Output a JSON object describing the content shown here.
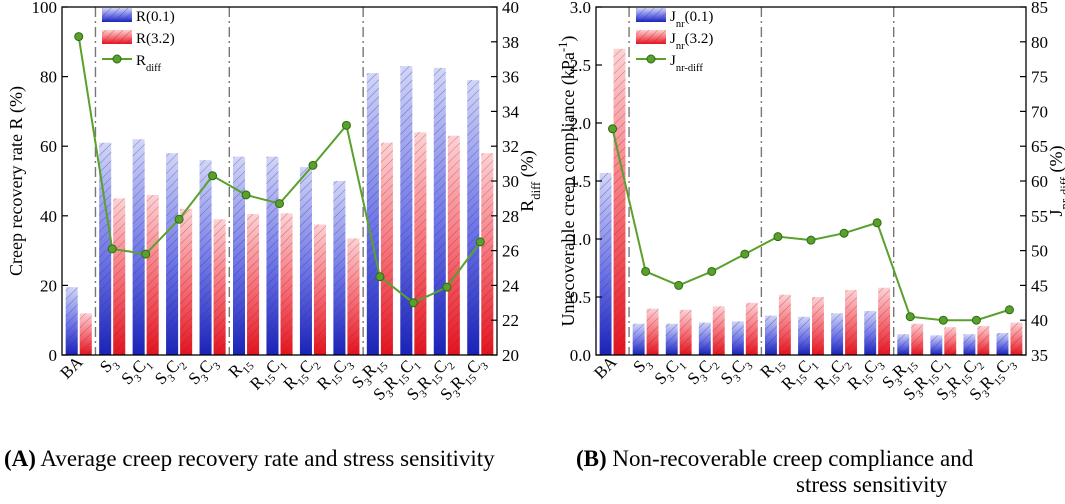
{
  "chart_data": [
    {
      "type": "bar",
      "panel": "A",
      "categories": [
        {
          "base": "BA",
          "subs": []
        },
        {
          "base": "S",
          "subs": [
            "3"
          ]
        },
        {
          "base": "S",
          "subs": [
            "3",
            "C",
            "1"
          ]
        },
        {
          "base": "S",
          "subs": [
            "3",
            "C",
            "2"
          ]
        },
        {
          "base": "S",
          "subs": [
            "3",
            "C",
            "3"
          ]
        },
        {
          "base": "R",
          "subs": [
            "15"
          ]
        },
        {
          "base": "R",
          "subs": [
            "15",
            "C",
            "1"
          ]
        },
        {
          "base": "R",
          "subs": [
            "15",
            "C",
            "2"
          ]
        },
        {
          "base": "R",
          "subs": [
            "15",
            "C",
            "3"
          ]
        },
        {
          "base": "S",
          "subs": [
            "3",
            "R",
            "15"
          ]
        },
        {
          "base": "S",
          "subs": [
            "3",
            "R",
            "15",
            "C",
            "1"
          ]
        },
        {
          "base": "S",
          "subs": [
            "3",
            "R",
            "15",
            "C",
            "2"
          ]
        },
        {
          "base": "S",
          "subs": [
            "3",
            "R",
            "15",
            "C",
            "3"
          ]
        }
      ],
      "series": [
        {
          "name": "R(0.1)",
          "legend_base": "R",
          "legend_sub": "",
          "legend_rest": "(0.1)",
          "axis": "left",
          "color": "#3a3fd0",
          "values": [
            19.5,
            61,
            62,
            58,
            56,
            57,
            57,
            54,
            50,
            81,
            83,
            82.5,
            79
          ]
        },
        {
          "name": "R(3.2)",
          "legend_base": "R",
          "legend_sub": "",
          "legend_rest": "(3.2)",
          "axis": "left",
          "color": "#f0404a",
          "values": [
            12,
            45,
            46,
            42,
            39,
            40.5,
            40.7,
            37.5,
            33.5,
            61,
            64,
            63,
            58
          ]
        },
        {
          "name": "Rdiff",
          "legend_base": "R",
          "legend_sub": "diff",
          "legend_rest": "",
          "axis": "right",
          "color": "#5aa02c",
          "type": "line",
          "values": [
            38.3,
            26.1,
            25.8,
            27.8,
            30.3,
            29.2,
            28.7,
            30.9,
            33.2,
            24.5,
            23.0,
            23.9,
            26.5
          ]
        }
      ],
      "ylabel": "Creep recovery rate R (%)",
      "y2label_base": "R",
      "y2label_sub": "diff",
      "y2label_rest": " (%)",
      "ylim": [
        0,
        100
      ],
      "yticks": [
        "0",
        "20",
        "40",
        "60",
        "80",
        "100"
      ],
      "y2lim": [
        20,
        40
      ],
      "y2ticks": [
        "20",
        "22",
        "24",
        "26",
        "28",
        "30",
        "32",
        "34",
        "36",
        "38",
        "40"
      ],
      "group_separators_after": [
        0,
        4,
        8
      ],
      "legend_position": "top-left"
    },
    {
      "type": "bar",
      "panel": "B",
      "categories": [
        {
          "base": "BA",
          "subs": []
        },
        {
          "base": "S",
          "subs": [
            "3"
          ]
        },
        {
          "base": "S",
          "subs": [
            "3",
            "C",
            "1"
          ]
        },
        {
          "base": "S",
          "subs": [
            "3",
            "C",
            "2"
          ]
        },
        {
          "base": "S",
          "subs": [
            "3",
            "C",
            "3"
          ]
        },
        {
          "base": "R",
          "subs": [
            "15"
          ]
        },
        {
          "base": "R",
          "subs": [
            "15",
            "C",
            "1"
          ]
        },
        {
          "base": "R",
          "subs": [
            "15",
            "C",
            "2"
          ]
        },
        {
          "base": "R",
          "subs": [
            "15",
            "C",
            "3"
          ]
        },
        {
          "base": "S",
          "subs": [
            "3",
            "R",
            "15"
          ]
        },
        {
          "base": "S",
          "subs": [
            "3",
            "R",
            "15",
            "C",
            "1"
          ]
        },
        {
          "base": "S",
          "subs": [
            "3",
            "R",
            "15",
            "C",
            "2"
          ]
        },
        {
          "base": "S",
          "subs": [
            "3",
            "R",
            "15",
            "C",
            "3"
          ]
        }
      ],
      "series": [
        {
          "name": "Jnr(0.1)",
          "legend_base": "J",
          "legend_sub": "nr",
          "legend_rest": "(0.1)",
          "axis": "left",
          "color": "#3a3fd0",
          "values": [
            1.57,
            0.27,
            0.27,
            0.28,
            0.29,
            0.34,
            0.33,
            0.36,
            0.38,
            0.18,
            0.17,
            0.18,
            0.19
          ]
        },
        {
          "name": "Jnr(3.2)",
          "legend_base": "J",
          "legend_sub": "nr",
          "legend_rest": "(3.2)",
          "axis": "left",
          "color": "#f0404a",
          "values": [
            2.64,
            0.4,
            0.39,
            0.42,
            0.45,
            0.52,
            0.5,
            0.56,
            0.58,
            0.27,
            0.24,
            0.25,
            0.28
          ]
        },
        {
          "name": "Jnr-diff",
          "legend_base": "J",
          "legend_sub": "nr-diff",
          "legend_rest": "",
          "axis": "right",
          "color": "#5aa02c",
          "type": "line",
          "values": [
            67.5,
            47.0,
            45.0,
            47.0,
            49.5,
            52.0,
            51.5,
            52.5,
            54.0,
            40.5,
            40.0,
            40.0,
            41.5
          ]
        }
      ],
      "ylabel_base": "Unrecoverable creep compliance (kPa",
      "ylabel_sup": "-1",
      "ylabel_rest": ")",
      "y2label_base": "J",
      "y2label_sub": "nr-diff",
      "y2label_rest": " (%)",
      "ylim": [
        0,
        3.0
      ],
      "yticks": [
        "0.0",
        "0.5",
        "1.0",
        "1.5",
        "2.0",
        "2.5",
        "3.0"
      ],
      "y2lim": [
        35,
        85
      ],
      "y2ticks": [
        "35",
        "40",
        "45",
        "50",
        "55",
        "60",
        "65",
        "70",
        "75",
        "80",
        "85"
      ],
      "group_separators_after": [
        0,
        4,
        8
      ],
      "legend_position": "top-left"
    }
  ],
  "captions": {
    "a_label": "(A)",
    "a_text": " Average creep recovery rate and stress sensitivity",
    "b_label": "(B)",
    "b_text_1": " Non-recoverable creep compliance and",
    "b_text_2": "stress sensitivity"
  }
}
